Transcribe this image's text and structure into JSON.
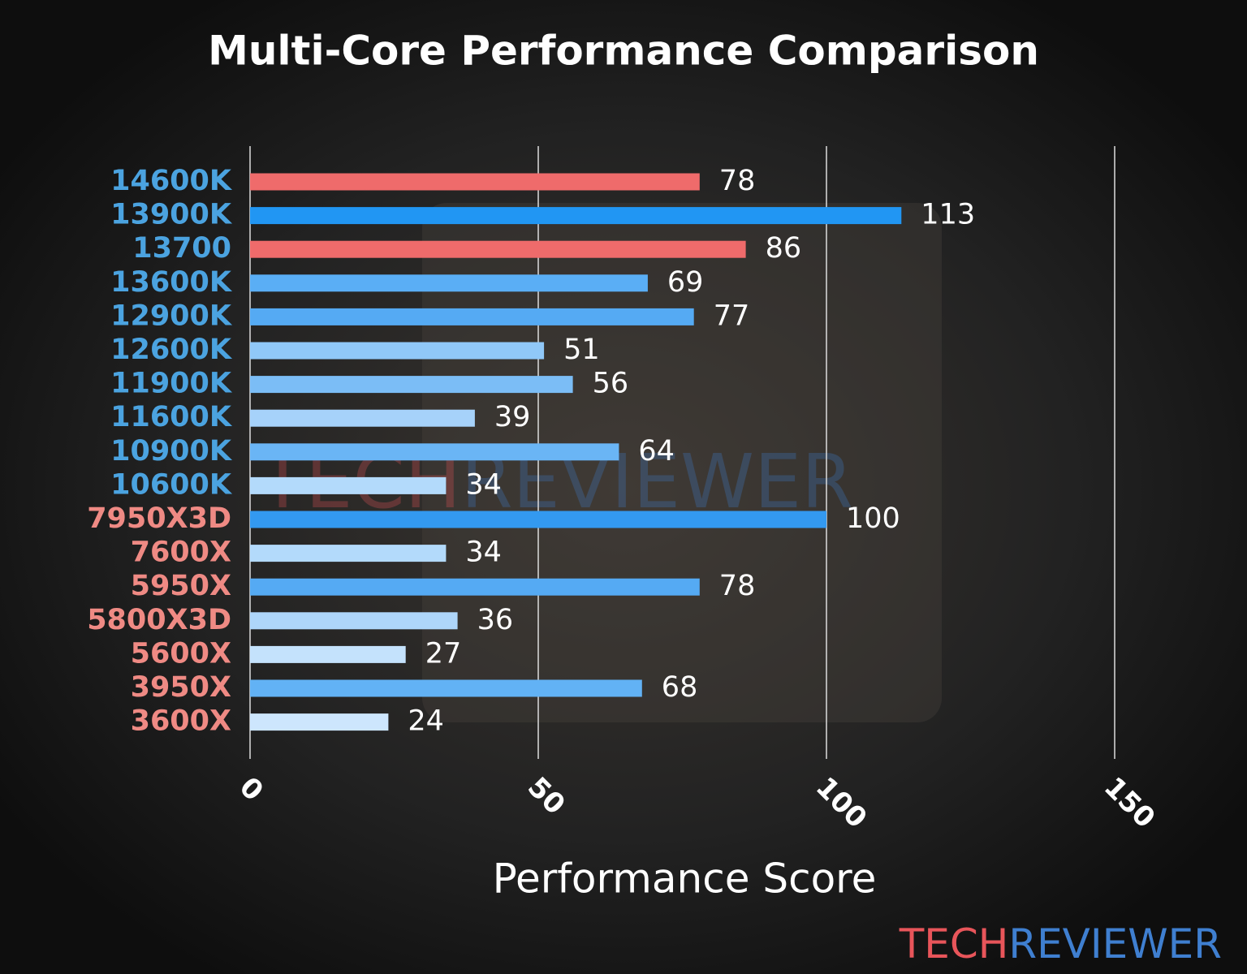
{
  "chart_data": {
    "type": "barh",
    "title": "Multi-Core Performance Comparison",
    "xlabel": "Performance Score",
    "categories": [
      "14600K",
      "13900K",
      "13700",
      "13600K",
      "12900K",
      "12600K",
      "11900K",
      "11600K",
      "10900K",
      "10600K",
      "7950X3D",
      "7600X",
      "5950X",
      "5800X3D",
      "5600X",
      "3950X",
      "3600X"
    ],
    "category_colors": [
      "#4ba3e0",
      "#4ba3e0",
      "#4ba3e0",
      "#4ba3e0",
      "#4ba3e0",
      "#4ba3e0",
      "#4ba3e0",
      "#4ba3e0",
      "#4ba3e0",
      "#4ba3e0",
      "#ef8a84",
      "#ef8a84",
      "#ef8a84",
      "#ef8a84",
      "#ef8a84",
      "#ef8a84",
      "#ef8a84"
    ],
    "values": [
      78,
      113,
      86,
      69,
      77,
      51,
      56,
      39,
      64,
      34,
      100,
      34,
      78,
      36,
      27,
      68,
      24
    ],
    "colors": [
      "#ef6b6b",
      "#2196f3",
      "#ef6b6b",
      "#5aaef5",
      "#55aaf3",
      "#90c8f8",
      "#7bbdf6",
      "#a6d2fa",
      "#6ab5f5",
      "#b3dafb",
      "#3399f0",
      "#b3dafb",
      "#55aaf3",
      "#aed6fa",
      "#c4e2fc",
      "#62b2f5",
      "#cde6fd"
    ],
    "xlim": [
      0,
      150
    ],
    "xticks": [
      0,
      50,
      100,
      150
    ],
    "grid": true,
    "watermark": [
      "TECH",
      "REVIEWER"
    ],
    "watermark_colors": [
      "#e8555a",
      "#3f7fd0"
    ]
  }
}
